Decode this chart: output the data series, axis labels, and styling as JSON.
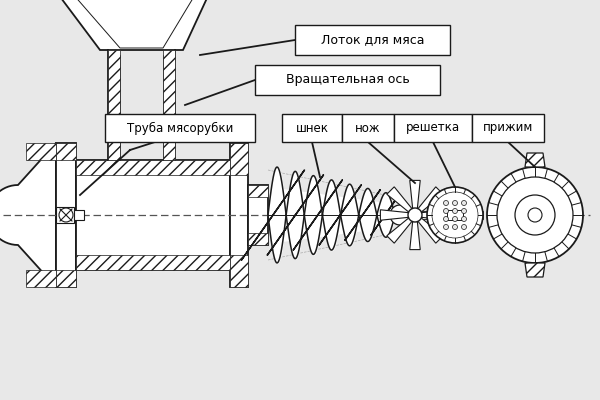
{
  "background_color": "#e8e8e8",
  "line_color": "#1a1a1a",
  "label_box_color": "#ffffff",
  "label_border_color": "#1a1a1a",
  "labels": {
    "lotok": "Лоток для мяса",
    "vrash": "Вращательная ось",
    "truba": "Труба мясорубки",
    "shnek": "шнек",
    "nozh": "нож",
    "reshetka": "решетка",
    "prizhim": "прижим"
  },
  "dashed_line_color": "#555555",
  "fig_width": 6.0,
  "fig_height": 4.0,
  "dpi": 100
}
